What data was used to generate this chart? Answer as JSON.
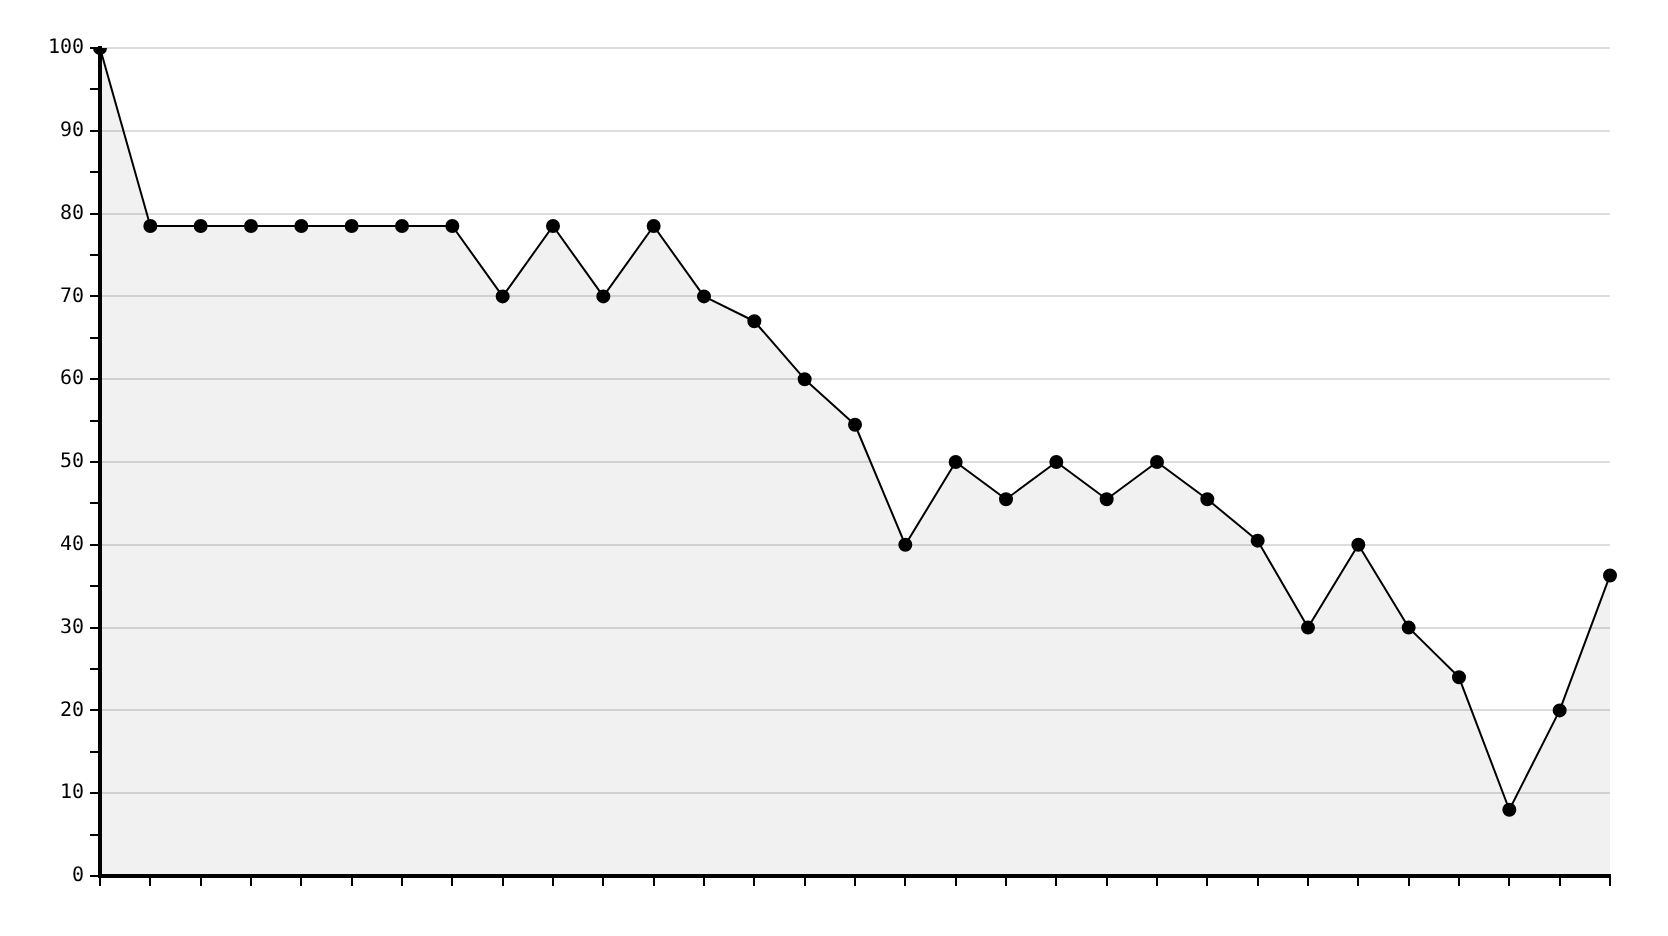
{
  "chart_data": {
    "type": "area",
    "categories": [
      null,
      null,
      null,
      null,
      null,
      null,
      null,
      null,
      null,
      null,
      null,
      null,
      null,
      null,
      null,
      null,
      null,
      null,
      null,
      null,
      null,
      null,
      null,
      null,
      null,
      null,
      null,
      null,
      null,
      null,
      null
    ],
    "series": [
      {
        "color": "#000000",
        "values": [
          100,
          78.5,
          78.5,
          78.5,
          78.5,
          78.5,
          78.5,
          78.5,
          70,
          78.5,
          70,
          78.5,
          70,
          67,
          60,
          54.5,
          40,
          50,
          45.5,
          50,
          45.5,
          50,
          45.5,
          40.5,
          30,
          40,
          30,
          24,
          8,
          20,
          36.3
        ]
      }
    ],
    "ylim": [
      0,
      100
    ],
    "yticks": [
      0,
      {
        "value": 5,
        "label": null
      },
      10,
      {
        "value": 15,
        "label": null
      },
      20,
      {
        "value": 25,
        "label": null
      },
      30,
      {
        "value": 35,
        "label": null
      },
      40,
      {
        "value": 45,
        "label": null
      },
      50,
      {
        "value": 55,
        "label": null
      },
      60,
      {
        "value": 65,
        "label": null
      },
      70,
      {
        "value": 75,
        "label": null
      },
      80,
      {
        "value": 85,
        "label": null
      },
      90,
      {
        "value": 95,
        "label": null
      },
      100
    ],
    "grid": "y",
    "legend": false,
    "marker": "circle",
    "line_style": "solid"
  }
}
